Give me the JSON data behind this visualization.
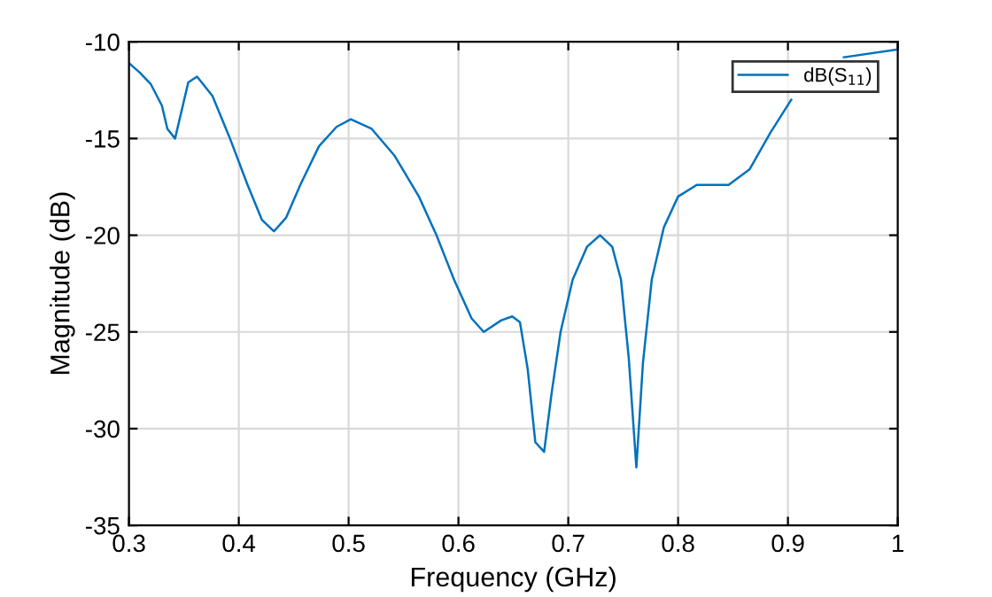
{
  "chart_data": {
    "type": "line",
    "xlabel": "Frequency (GHz)",
    "ylabel": "Magnitude (dB)",
    "xlim": [
      0.3,
      1
    ],
    "ylim": [
      -35,
      -10
    ],
    "xticks": [
      0.3,
      0.4,
      0.5,
      0.6,
      0.7,
      0.8,
      0.9,
      1
    ],
    "yticks": [
      -35,
      -30,
      -25,
      -20,
      -15,
      -10
    ],
    "grid": true,
    "legend": "top right",
    "line_style": "solid",
    "marker": "none",
    "series": [
      {
        "name": "dB(S$_{11}$)",
        "color": "#0072bd",
        "x": [
          0.3,
          0.31,
          0.32,
          0.33,
          0.335,
          0.342,
          0.354,
          0.362,
          0.376,
          0.392,
          0.408,
          0.421,
          0.432,
          0.443,
          0.456,
          0.473,
          0.489,
          0.502,
          0.521,
          0.542,
          0.564,
          0.58,
          0.596,
          0.612,
          0.623,
          0.639,
          0.649,
          0.656,
          0.663,
          0.67,
          0.678,
          0.685,
          0.693,
          0.704,
          0.717,
          0.729,
          0.74,
          0.748,
          0.755,
          0.762,
          0.768,
          0.776,
          0.787,
          0.8,
          0.817,
          0.846,
          0.865,
          0.884,
          0.903,
          0.924,
          0.951,
          1.0
        ],
        "values": [
          -11.1,
          -11.6,
          -12.2,
          -13.3,
          -14.5,
          -15.0,
          -12.1,
          -11.8,
          -12.8,
          -15.0,
          -17.4,
          -19.2,
          -19.8,
          -19.1,
          -17.4,
          -15.4,
          -14.4,
          -14.0,
          -14.5,
          -15.9,
          -18.0,
          -20.0,
          -22.3,
          -24.3,
          -25.0,
          -24.4,
          -24.2,
          -24.5,
          -26.9,
          -30.7,
          -31.2,
          -28.1,
          -25.0,
          -22.3,
          -20.6,
          -20.0,
          -20.6,
          -22.3,
          -26.3,
          -32.0,
          -26.6,
          -22.3,
          -19.6,
          -18.0,
          -17.4,
          -17.4,
          -16.6,
          -14.7,
          -13.0,
          null,
          -10.8,
          -10.4
        ]
      }
    ]
  }
}
